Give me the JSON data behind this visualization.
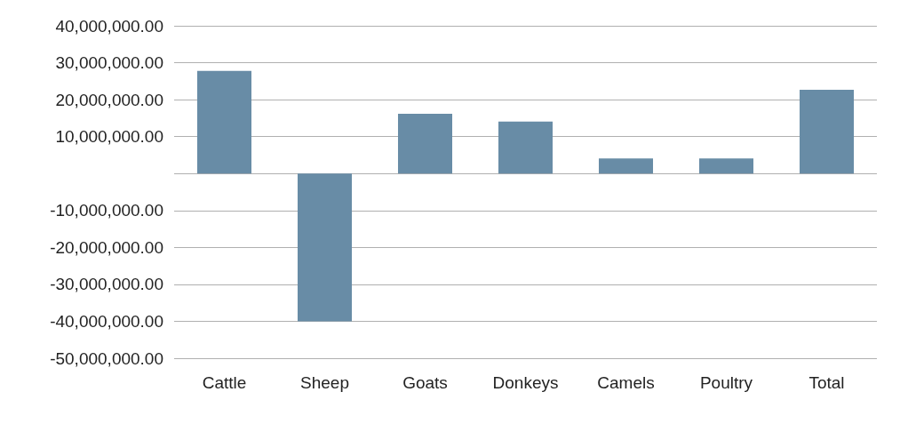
{
  "chart_data": {
    "type": "bar",
    "categories": [
      "Cattle",
      "Sheep",
      "Goats",
      "Donkeys",
      "Camels",
      "Poultry",
      "Total"
    ],
    "values": [
      27800000,
      -40000000,
      16200000,
      14100000,
      4100000,
      4100000,
      22700000
    ],
    "color": "#688ca6",
    "ylim": [
      -50000000,
      40000000
    ],
    "yticks": [
      {
        "value": -50000000,
        "label": "-50,000,000.00"
      },
      {
        "value": -40000000,
        "label": "-40,000,000.00"
      },
      {
        "value": -30000000,
        "label": "-30,000,000.00"
      },
      {
        "value": -20000000,
        "label": "-20,000,000.00"
      },
      {
        "value": -10000000,
        "label": "-10,000,000.00"
      },
      {
        "value": 0,
        "label": null
      },
      {
        "value": 10000000,
        "label": "10,000,000.00"
      },
      {
        "value": 20000000,
        "label": "20,000,000.00"
      },
      {
        "value": 30000000,
        "label": "30,000,000.00"
      },
      {
        "value": 40000000,
        "label": "40,000,000.00"
      }
    ],
    "grid": "y"
  }
}
